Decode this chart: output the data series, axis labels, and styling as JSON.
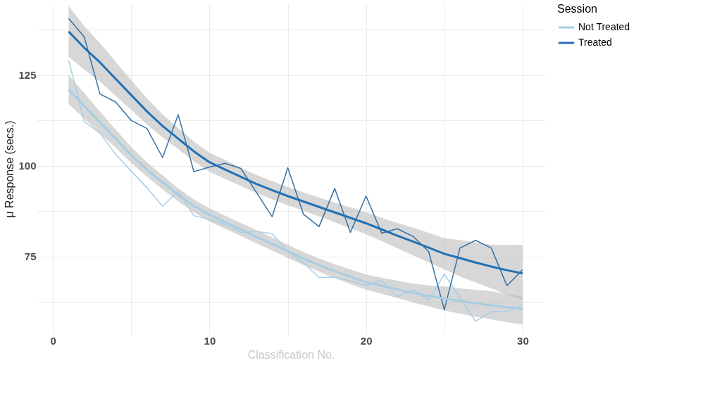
{
  "chart_data": {
    "type": "line",
    "xlabel": "Classification No.",
    "ylabel": "μ Response (secs.)",
    "legend_title": "Session",
    "legend": "right",
    "grid": true,
    "line_style": "solid",
    "marker": "none",
    "x": [
      1,
      2,
      3,
      4,
      5,
      6,
      7,
      8,
      9,
      10,
      11,
      12,
      13,
      14,
      15,
      16,
      17,
      18,
      19,
      20,
      21,
      22,
      23,
      24,
      25,
      26,
      27,
      28,
      29,
      30
    ],
    "xlim": [
      -1,
      31.4
    ],
    "ylim": [
      53.7,
      144.7
    ],
    "xticks": [
      0,
      {
        "value": 5,
        "label": null
      },
      10,
      {
        "value": 15,
        "label": null
      },
      20,
      {
        "value": 25,
        "label": null
      },
      30
    ],
    "yticks": [
      {
        "value": 62.5,
        "label": null
      },
      75,
      {
        "value": 87.5,
        "label": null
      },
      100,
      {
        "value": 112.5,
        "label": null
      },
      125,
      {
        "value": 137.5,
        "label": null
      }
    ],
    "series": [
      {
        "color": "#a6cee3",
        "values": [
          129.1,
          112.2,
          109.0,
          103.2,
          98.5,
          94.0,
          88.9,
          93.0,
          86.3,
          85.3,
          83.8,
          81.7,
          81.9,
          81.4,
          76.4,
          73.3,
          69.3,
          69.4,
          68.3,
          67.1,
          68.5,
          64.0,
          65.9,
          63.0,
          70.2,
          63.7,
          57.2,
          59.9,
          59.9,
          61.7
        ]
      },
      {
        "color": "#3570a6",
        "values": [
          140.6,
          135.5,
          119.8,
          117.6,
          112.5,
          110.3,
          102.3,
          114.1,
          98.4,
          99.7,
          100.7,
          99.3,
          92.7,
          86.0,
          99.5,
          86.7,
          83.3,
          93.8,
          81.7,
          91.7,
          81.5,
          82.7,
          80.6,
          76.4,
          60.4,
          77.4,
          79.5,
          77.4,
          67.0,
          71.4
        ]
      },
      {
        "name": "Not Treated",
        "color": "#a6cee3",
        "values": [
          121,
          116.5,
          112,
          107.5,
          103,
          99,
          95.5,
          92,
          89,
          86.5,
          84.5,
          82.5,
          80.5,
          78.5,
          76.5,
          74.5,
          72.7,
          71,
          69.5,
          68,
          67,
          66,
          65,
          64.2,
          63.5,
          62.8,
          62.2,
          61.6,
          61.1,
          60.6
        ],
        "lower": [
          117,
          113,
          109,
          105,
          100.8,
          97,
          93.6,
          90.2,
          87.2,
          84.7,
          82.7,
          80.7,
          78.7,
          76.7,
          74.7,
          72.7,
          70.9,
          69.1,
          67.5,
          65.9,
          64.8,
          63.6,
          62.4,
          61.3,
          60.2,
          59.3,
          58.5,
          57.7,
          57,
          56.3
        ],
        "upper": [
          125,
          120,
          115,
          110,
          105.2,
          101,
          97.4,
          93.8,
          90.8,
          88.3,
          86.3,
          84.3,
          82.3,
          80.3,
          78.3,
          76.3,
          74.5,
          72.9,
          71.5,
          70.1,
          69.2,
          68.4,
          67.6,
          67.1,
          66.8,
          66.3,
          65.9,
          65.5,
          64.8,
          64
        ]
      },
      {
        "name": "Treated",
        "color": "#2171b5",
        "values": [
          137,
          132.5,
          128.5,
          124,
          119.5,
          115,
          111,
          107.5,
          104,
          101,
          99,
          97,
          95,
          93.3,
          91.7,
          90.2,
          88.7,
          87.2,
          85.7,
          84.2,
          82.5,
          80.8,
          79.2,
          77.5,
          75.8,
          74.6,
          73.4,
          72.3,
          71.3,
          70.4
        ],
        "lower": [
          130,
          126.5,
          123.2,
          119.3,
          115.4,
          111.4,
          107.8,
          104.6,
          101.3,
          98.4,
          96.4,
          94.5,
          92.5,
          90.8,
          89.2,
          87.7,
          86.1,
          84.5,
          82.8,
          81.2,
          79.3,
          77.3,
          75.4,
          73.4,
          71.5,
          69.6,
          67.9,
          66.3,
          64.6,
          63
        ],
        "upper": [
          144,
          138.5,
          133.8,
          128.7,
          123.6,
          118.6,
          114.2,
          110.4,
          106.7,
          103.6,
          101.6,
          99.5,
          97.5,
          95.8,
          94.2,
          92.7,
          91.3,
          89.9,
          88.6,
          87.2,
          85.7,
          84.3,
          83,
          81.6,
          80.1,
          79.6,
          78.9,
          78.3,
          78.2,
          78.3
        ]
      }
    ]
  }
}
